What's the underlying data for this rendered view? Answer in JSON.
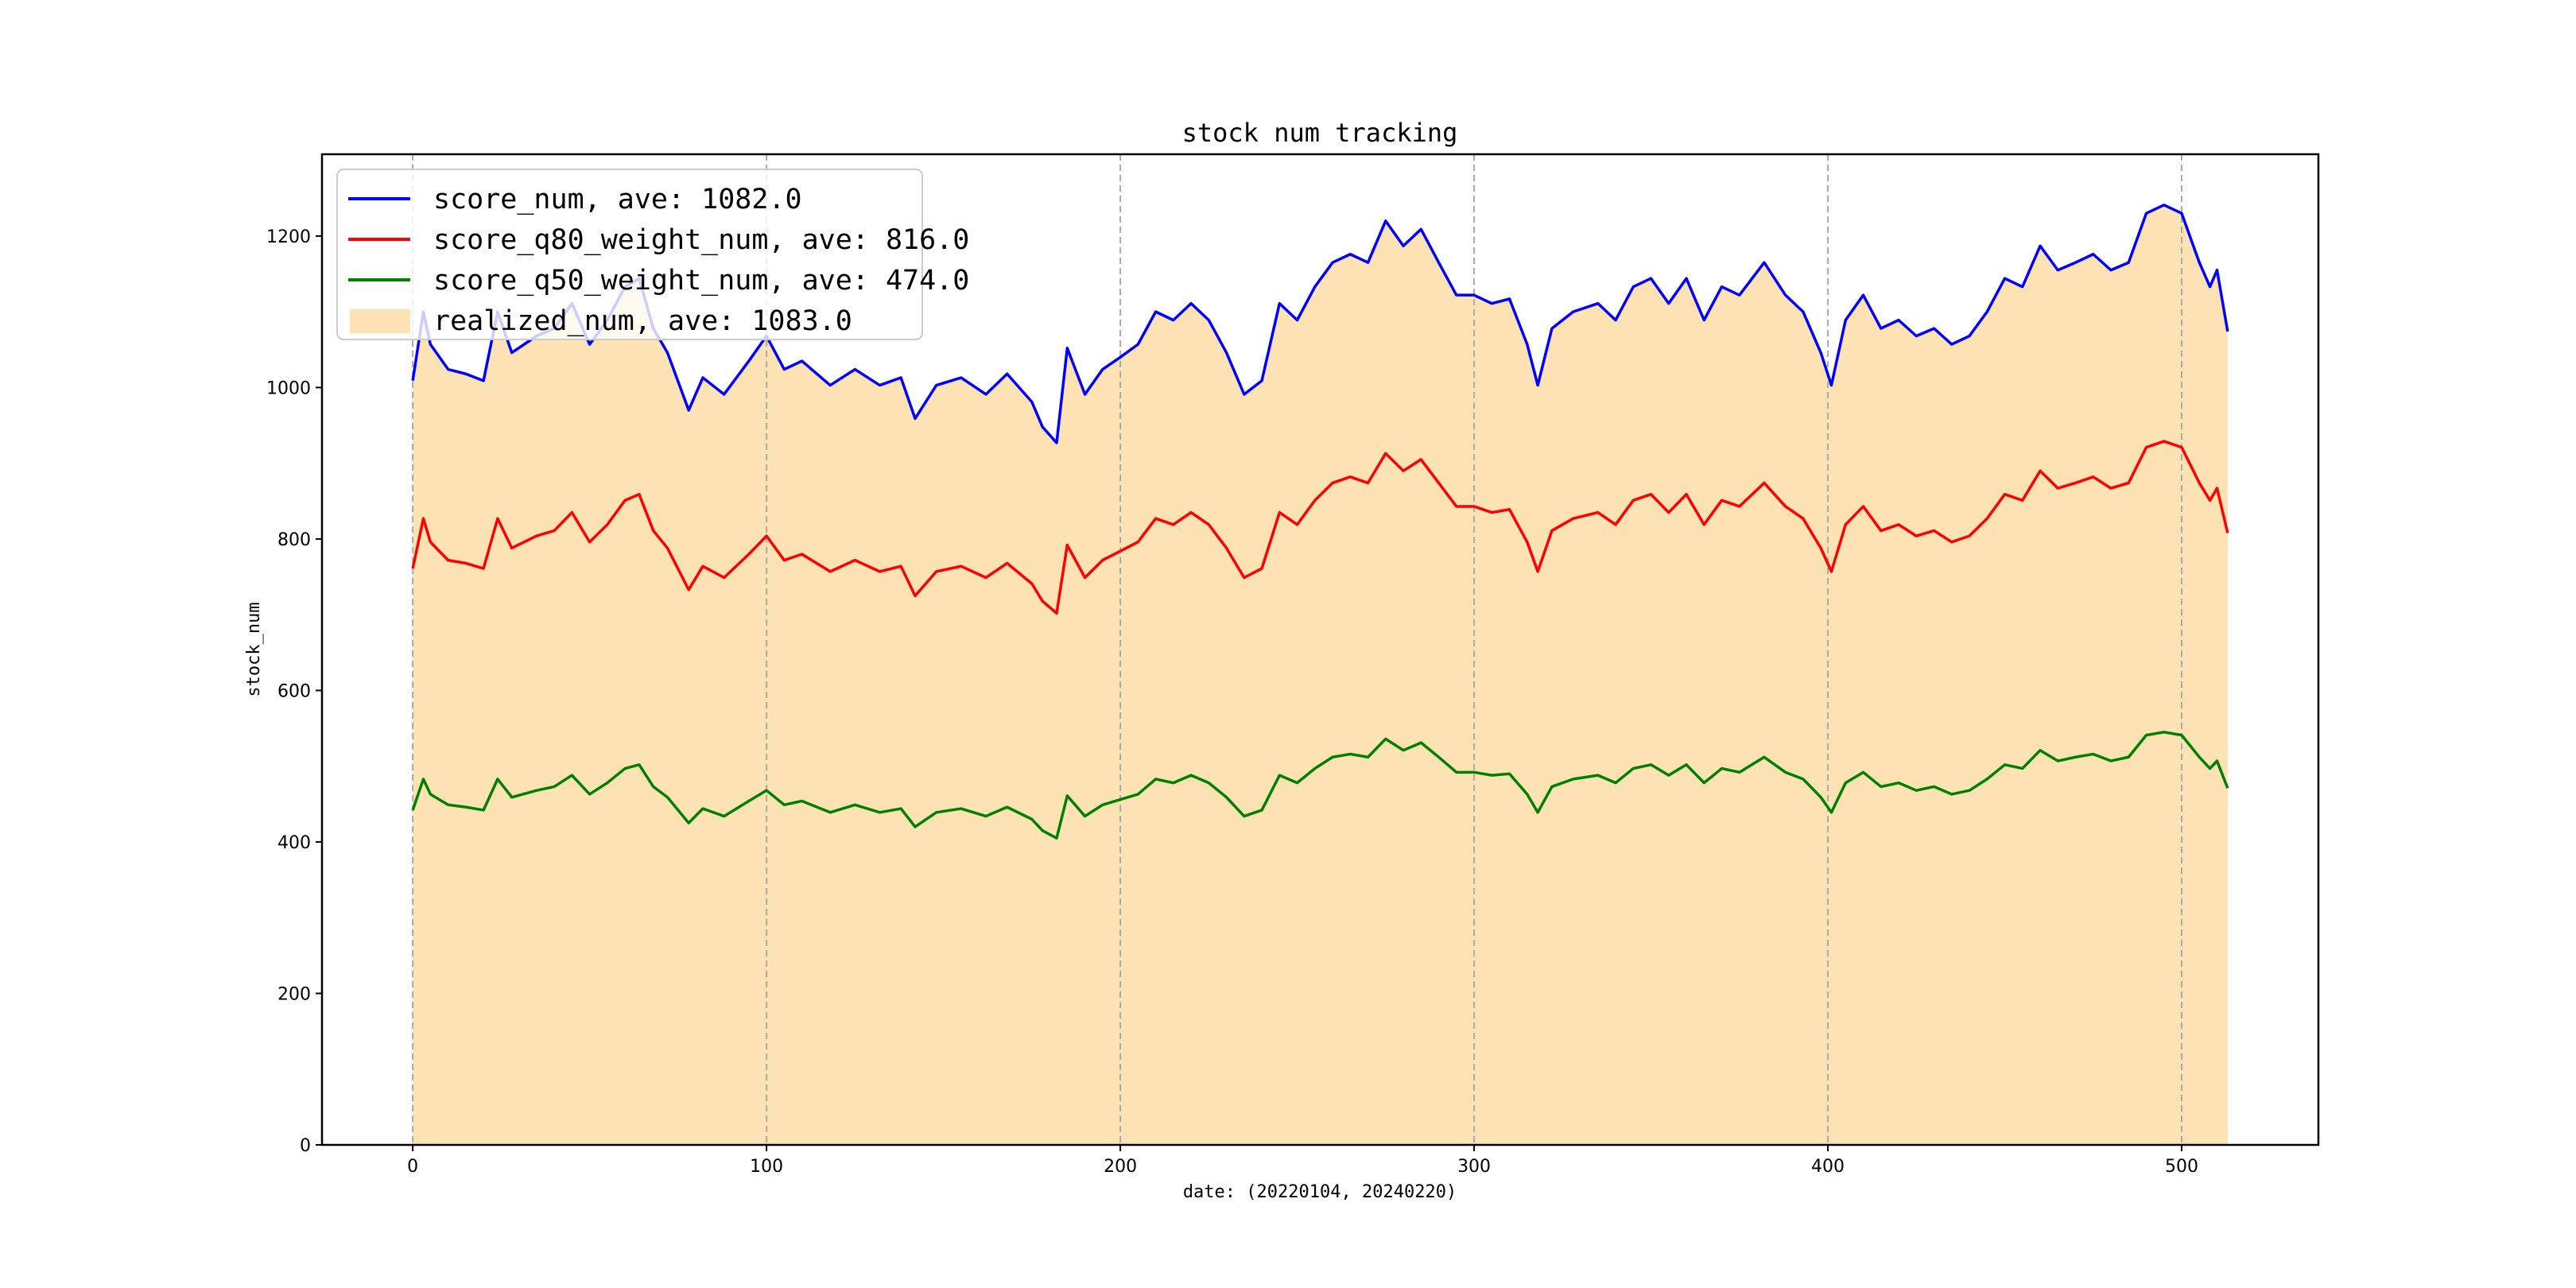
{
  "chart_data": {
    "type": "line",
    "title": "stock num tracking",
    "xlabel": "date: (20220104, 20240220)",
    "ylabel": "stock_num",
    "xlim": [
      -25.65,
      538.65
    ],
    "ylim": [
      0,
      1308
    ],
    "xticks": [
      0,
      100,
      200,
      300,
      400,
      500
    ],
    "yticks": [
      0,
      200,
      400,
      600,
      800,
      1000,
      1200
    ],
    "grid": "vertical dashed lines at x ticks",
    "legend_position": "top-left",
    "x": [
      0,
      3,
      5,
      10,
      15,
      20,
      24,
      28,
      35,
      40,
      45,
      50,
      55,
      60,
      64,
      68,
      72,
      78,
      82,
      88,
      95,
      100,
      105,
      110,
      118,
      125,
      132,
      138,
      142,
      148,
      155,
      162,
      168,
      175,
      178,
      182,
      185,
      190,
      195,
      200,
      205,
      210,
      215,
      220,
      225,
      230,
      235,
      240,
      245,
      250,
      255,
      260,
      265,
      270,
      275,
      280,
      285,
      290,
      295,
      300,
      305,
      310,
      315,
      318,
      322,
      328,
      335,
      340,
      345,
      350,
      355,
      360,
      365,
      370,
      375,
      382,
      388,
      393,
      398,
      401,
      405,
      410,
      415,
      420,
      425,
      430,
      435,
      440,
      445,
      450,
      455,
      460,
      465,
      470,
      475,
      480,
      485,
      490,
      495,
      500,
      505,
      508,
      510,
      513
    ],
    "series": [
      {
        "name": "score_num, ave: 1082.0",
        "kind": "line",
        "color": "#0000ff",
        "values": [
          1009,
          1100,
          1057,
          1024,
          1018,
          1009,
          1100,
          1046,
          1068,
          1078,
          1111,
          1057,
          1089,
          1133,
          1144,
          1078,
          1046,
          970,
          1013,
          991,
          1035,
          1068,
          1024,
          1035,
          1003,
          1024,
          1003,
          1013,
          959,
          1003,
          1013,
          991,
          1018,
          981,
          948,
          927,
          1052,
          991,
          1024,
          1040,
          1057,
          1100,
          1089,
          1111,
          1089,
          1046,
          991,
          1009,
          1111,
          1089,
          1133,
          1165,
          1176,
          1165,
          1220,
          1187,
          1209,
          1165,
          1122,
          1122,
          1111,
          1117,
          1057,
          1003,
          1078,
          1100,
          1111,
          1089,
          1133,
          1144,
          1111,
          1144,
          1089,
          1133,
          1122,
          1165,
          1122,
          1100,
          1046,
          1003,
          1089,
          1122,
          1078,
          1089,
          1068,
          1078,
          1057,
          1068,
          1100,
          1144,
          1133,
          1187,
          1155,
          1165,
          1176,
          1155,
          1165,
          1230,
          1241,
          1230,
          1165,
          1133,
          1155,
          1074
        ]
      },
      {
        "name": "score_q80_weight_num, ave: 816.0",
        "kind": "line",
        "color": "#ff0000",
        "values": [
          761,
          827,
          796,
          772,
          768,
          761,
          827,
          788,
          804,
          811,
          835,
          796,
          819,
          851,
          859,
          811,
          788,
          733,
          764,
          749,
          780,
          804,
          772,
          780,
          757,
          772,
          757,
          764,
          725,
          757,
          764,
          749,
          768,
          741,
          718,
          702,
          792,
          749,
          772,
          784,
          796,
          827,
          819,
          835,
          819,
          788,
          749,
          761,
          835,
          819,
          851,
          874,
          882,
          874,
          913,
          890,
          905,
          874,
          843,
          843,
          835,
          839,
          796,
          757,
          811,
          827,
          835,
          819,
          851,
          859,
          835,
          859,
          819,
          851,
          843,
          874,
          843,
          827,
          788,
          757,
          819,
          843,
          811,
          819,
          804,
          811,
          796,
          804,
          827,
          859,
          851,
          890,
          867,
          874,
          882,
          867,
          874,
          921,
          929,
          921,
          874,
          851,
          867,
          808
        ]
      },
      {
        "name": "score_q50_weight_num, ave: 474.0",
        "kind": "line",
        "color": "#008000",
        "values": [
          442,
          483,
          463,
          449,
          446,
          442,
          483,
          459,
          468,
          473,
          488,
          463,
          478,
          497,
          502,
          473,
          459,
          425,
          444,
          434,
          454,
          468,
          449,
          454,
          439,
          449,
          439,
          444,
          420,
          439,
          444,
          434,
          446,
          430,
          415,
          405,
          461,
          434,
          449,
          456,
          463,
          483,
          478,
          488,
          478,
          459,
          434,
          442,
          488,
          478,
          497,
          512,
          516,
          512,
          536,
          521,
          531,
          512,
          492,
          492,
          488,
          490,
          463,
          439,
          473,
          483,
          488,
          478,
          497,
          502,
          488,
          502,
          478,
          497,
          492,
          512,
          492,
          483,
          459,
          439,
          478,
          492,
          473,
          478,
          468,
          473,
          463,
          468,
          483,
          502,
          497,
          521,
          507,
          512,
          516,
          507,
          512,
          541,
          545,
          541,
          512,
          497,
          507,
          471
        ]
      },
      {
        "name": "realized_num, ave: 1083.0",
        "kind": "area",
        "color": "#fde2b4",
        "values": [
          1009,
          1100,
          1057,
          1024,
          1018,
          1009,
          1100,
          1046,
          1068,
          1078,
          1111,
          1057,
          1089,
          1133,
          1144,
          1078,
          1046,
          970,
          1013,
          991,
          1035,
          1068,
          1024,
          1035,
          1003,
          1024,
          1003,
          1013,
          959,
          1003,
          1013,
          991,
          1018,
          981,
          948,
          927,
          1052,
          991,
          1024,
          1040,
          1057,
          1100,
          1089,
          1111,
          1089,
          1046,
          991,
          1009,
          1111,
          1089,
          1133,
          1165,
          1176,
          1165,
          1220,
          1187,
          1209,
          1165,
          1122,
          1122,
          1111,
          1117,
          1057,
          1003,
          1078,
          1100,
          1111,
          1089,
          1133,
          1144,
          1111,
          1144,
          1089,
          1133,
          1122,
          1165,
          1122,
          1100,
          1046,
          1003,
          1089,
          1122,
          1078,
          1089,
          1068,
          1078,
          1057,
          1068,
          1100,
          1144,
          1133,
          1187,
          1155,
          1165,
          1176,
          1155,
          1165,
          1230,
          1241,
          1230,
          1165,
          1133,
          1155,
          1074
        ]
      }
    ]
  }
}
